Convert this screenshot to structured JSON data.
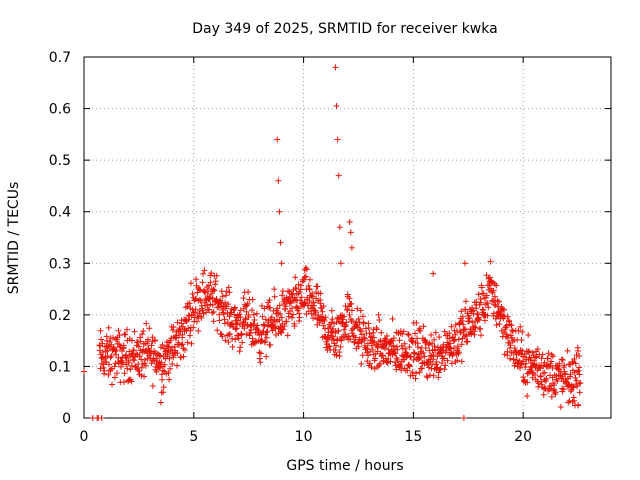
{
  "chart_data": {
    "type": "scatter",
    "title": "Day 349 of 2025, SRMTID for receiver kwka",
    "xlabel": "GPS time / hours",
    "ylabel": "SRMTID / TECUs",
    "xlim": [
      0,
      24
    ],
    "ylim": [
      0,
      0.7
    ],
    "xticks": [
      0,
      5,
      10,
      15,
      20
    ],
    "xtick_labels": [
      "0",
      "5",
      "10",
      "15",
      "20"
    ],
    "yticks": [
      0,
      0.1,
      0.2,
      0.3,
      0.4,
      0.5,
      0.6,
      0.7
    ],
    "ytick_labels": [
      "0",
      "0.1",
      "0.2",
      "0.3",
      "0.4",
      "0.5",
      "0.6",
      "0.7"
    ],
    "grid": true,
    "marker": "plus",
    "color": "#e8140a",
    "series": [
      {
        "name": "SRMTID",
        "trend": {
          "x": [
            0.7,
            1.0,
            2.0,
            3.0,
            3.5,
            4.0,
            4.5,
            5.0,
            5.5,
            6.0,
            6.5,
            7.0,
            7.5,
            8.0,
            8.5,
            9.0,
            9.5,
            10.0,
            10.5,
            11.0,
            11.5,
            12.0,
            12.5,
            13.0,
            14.0,
            15.0,
            16.0,
            16.5,
            17.0,
            17.5,
            18.0,
            18.5,
            19.0,
            19.5,
            20.0,
            20.5,
            21.0,
            21.5,
            22.0,
            22.6
          ],
          "y": [
            0.12,
            0.12,
            0.12,
            0.125,
            0.11,
            0.13,
            0.16,
            0.22,
            0.24,
            0.23,
            0.2,
            0.18,
            0.19,
            0.16,
            0.18,
            0.2,
            0.21,
            0.24,
            0.22,
            0.17,
            0.15,
            0.2,
            0.16,
            0.14,
            0.13,
            0.13,
            0.12,
            0.14,
            0.15,
            0.18,
            0.2,
            0.25,
            0.2,
            0.14,
            0.11,
            0.1,
            0.09,
            0.08,
            0.07,
            0.08
          ]
        },
        "spread": 0.035,
        "extra_points": {
          "x": [
            0.0,
            0.4,
            0.6,
            0.65,
            0.8,
            8.8,
            8.85,
            8.9,
            8.95,
            9.0,
            11.45,
            11.5,
            11.55,
            11.6,
            11.65,
            11.7,
            12.1,
            12.15,
            12.2,
            15.9,
            17.3,
            17.35,
            3.5,
            3.6,
            22.5,
            22.55
          ],
          "y": [
            0.09,
            0.0,
            0.0,
            0.0,
            0.0,
            0.54,
            0.46,
            0.4,
            0.34,
            0.3,
            0.68,
            0.605,
            0.54,
            0.47,
            0.37,
            0.3,
            0.38,
            0.36,
            0.33,
            0.28,
            0.0,
            0.3,
            0.03,
            0.05,
            0.13,
            0.12
          ]
        }
      }
    ]
  }
}
